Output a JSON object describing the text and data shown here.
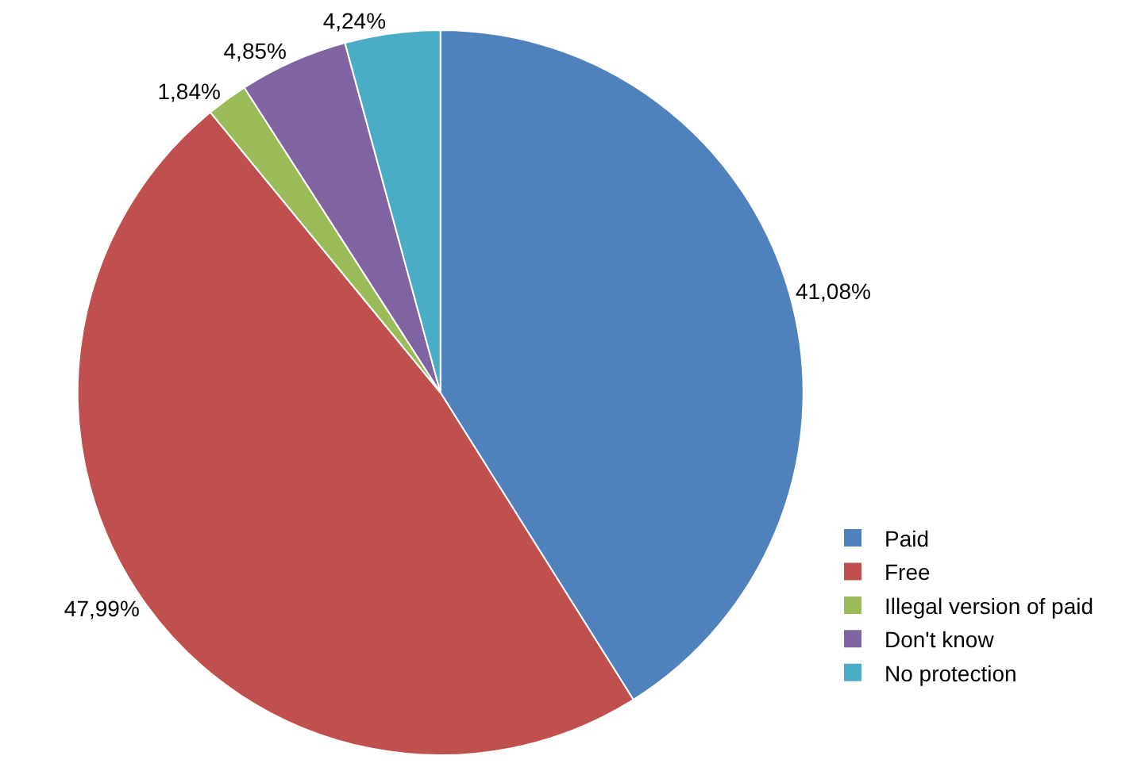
{
  "chart_data": {
    "type": "pie",
    "categories": [
      "Paid",
      "Free",
      "Illegal version of paid",
      "Don't know",
      "No protection"
    ],
    "values": [
      41.08,
      47.99,
      1.84,
      4.85,
      4.24
    ],
    "value_labels": [
      "41,08%",
      "47,99%",
      "1,84%",
      "4,85%",
      "4,24%"
    ],
    "colors": [
      "#4f81bd",
      "#c0504d",
      "#9bbb59",
      "#8064a2",
      "#4bacc6"
    ],
    "legend": "bottom right"
  }
}
